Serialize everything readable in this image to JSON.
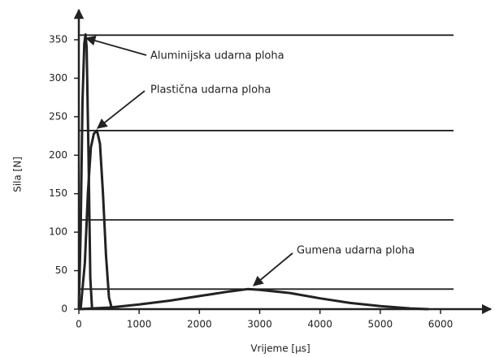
{
  "chart_data": {
    "type": "line",
    "xlabel": "Vrijeme [µs]",
    "ylabel": "Sila [N]",
    "xlim": [
      0,
      6000
    ],
    "xticks": [
      0,
      1000,
      2000,
      3000,
      4000,
      5000,
      6000
    ],
    "ylim": [
      0,
      350
    ],
    "yticks": [
      0,
      50,
      100,
      150,
      200,
      250,
      300,
      350
    ],
    "reference_lines": [
      356,
      232,
      116,
      26
    ],
    "annotations": [
      "Aluminijska udarna ploha",
      "Plastična udarna ploha",
      "Gumena udarna ploha"
    ],
    "series": [
      {
        "color": "#222222",
        "x": [
          0,
          30,
          60,
          90,
          110,
          130,
          160,
          190,
          220
        ],
        "values": [
          0,
          100,
          270,
          345,
          357,
          340,
          200,
          40,
          0
        ]
      },
      {
        "color": "#222222",
        "x": [
          30,
          100,
          150,
          200,
          250,
          300,
          350,
          400,
          450,
          500,
          550
        ],
        "values": [
          0,
          60,
          150,
          210,
          228,
          232,
          215,
          150,
          70,
          15,
          0
        ]
      },
      {
        "color": "#222222",
        "x": [
          0,
          500,
          1000,
          1500,
          2000,
          2500,
          2800,
          3000,
          3500,
          4000,
          4500,
          5000,
          5500,
          5800
        ],
        "values": [
          0,
          2,
          6,
          11,
          17,
          23,
          26,
          25,
          21,
          14,
          8,
          4,
          1,
          0
        ]
      }
    ]
  }
}
